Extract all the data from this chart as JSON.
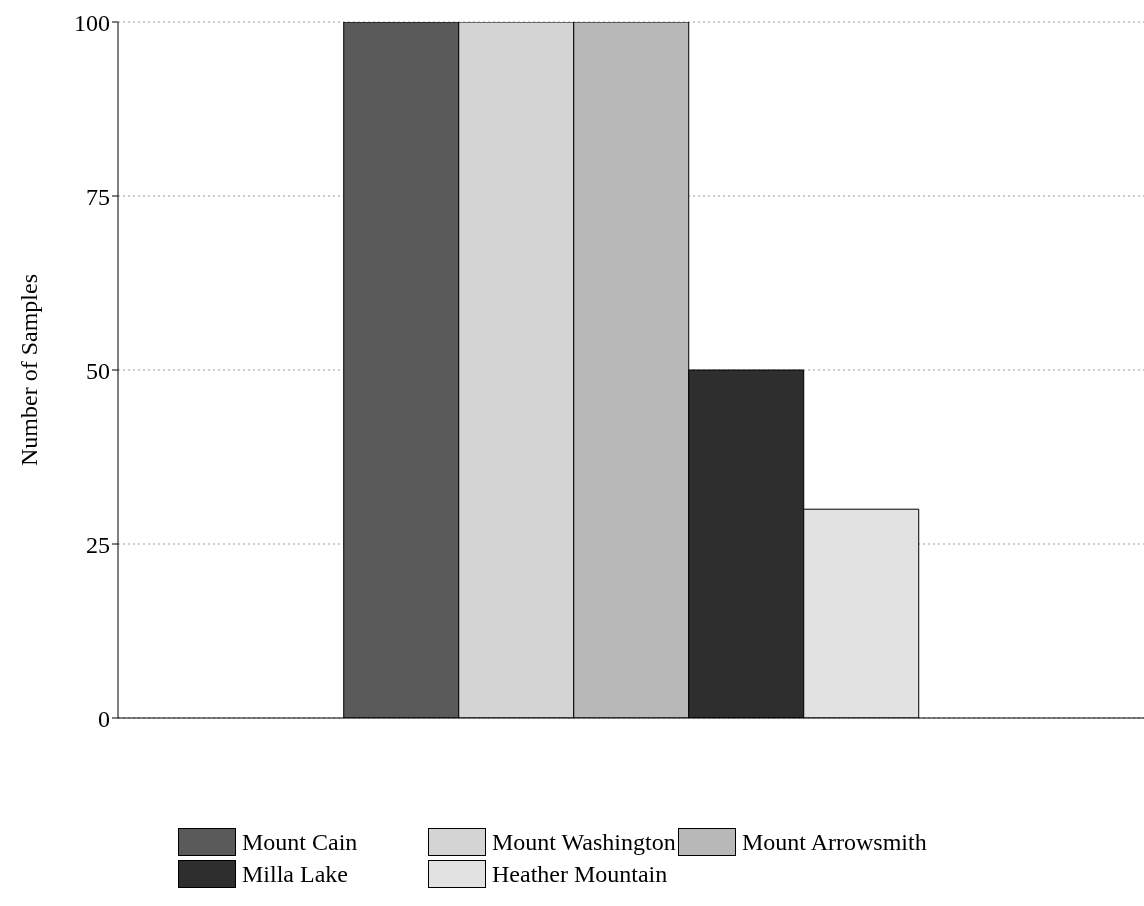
{
  "chart_data": {
    "type": "bar",
    "ylabel": "Number of Samples",
    "categories": [
      null
    ],
    "series": [
      {
        "name": "Mount Cain",
        "color": "#5a5a5a",
        "values": [
          100
        ]
      },
      {
        "name": "Mount Washington",
        "color": "#d4d4d4",
        "values": [
          100
        ]
      },
      {
        "name": "Mount Arrowsmith",
        "color": "#b8b8b8",
        "values": [
          100
        ]
      },
      {
        "name": "Milla Lake",
        "color": "#2e2e2e",
        "values": [
          50
        ]
      },
      {
        "name": "Heather Mountain",
        "color": "#e2e2e2",
        "values": [
          30
        ]
      }
    ],
    "ylim": [
      0,
      100
    ],
    "yticks": [
      0,
      25,
      50,
      75,
      100
    ],
    "grid": "y",
    "legend": "bottom"
  }
}
